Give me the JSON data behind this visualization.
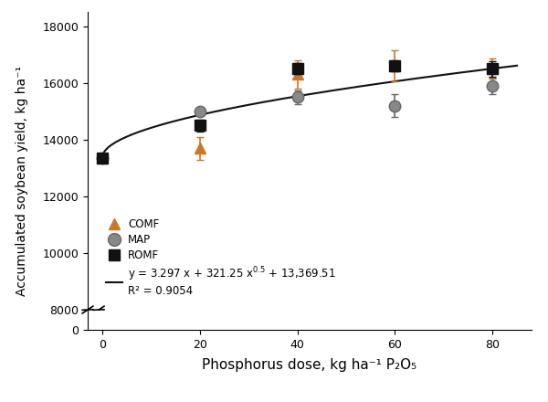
{
  "x_doses": [
    0,
    20,
    40,
    60,
    80
  ],
  "COMF_y": [
    13350,
    13700,
    16300,
    16600,
    16500
  ],
  "COMF_err": [
    150,
    400,
    500,
    550,
    350
  ],
  "MAP_y": [
    13350,
    15000,
    15500,
    15200,
    15900
  ],
  "MAP_err": [
    100,
    120,
    250,
    400,
    300
  ],
  "ROMF_y": [
    13350,
    14500,
    16500,
    16600,
    16500
  ],
  "ROMF_err": [
    120,
    200,
    200,
    200,
    280
  ],
  "fit_a": 3.297,
  "fit_b": 321.25,
  "fit_c": 13369.51,
  "ylabel": "Accumulated soybean yield, kg ha⁻¹",
  "xlabel": "Phosphorus dose, kg ha⁻¹ P₂O₅",
  "xlim": [
    -3,
    88
  ],
  "ylim_main": [
    8000,
    18500
  ],
  "ylim_break": [
    0,
    500
  ],
  "yticks_main": [
    8000,
    10000,
    12000,
    14000,
    16000,
    18000
  ],
  "yticks_break": [
    0
  ],
  "xticks": [
    0,
    20,
    40,
    60,
    80
  ],
  "COMF_color": "#cc7722",
  "MAP_color": "#888888",
  "ROMF_color": "#111111",
  "line_color": "#111111",
  "bg_color": "#ffffff"
}
